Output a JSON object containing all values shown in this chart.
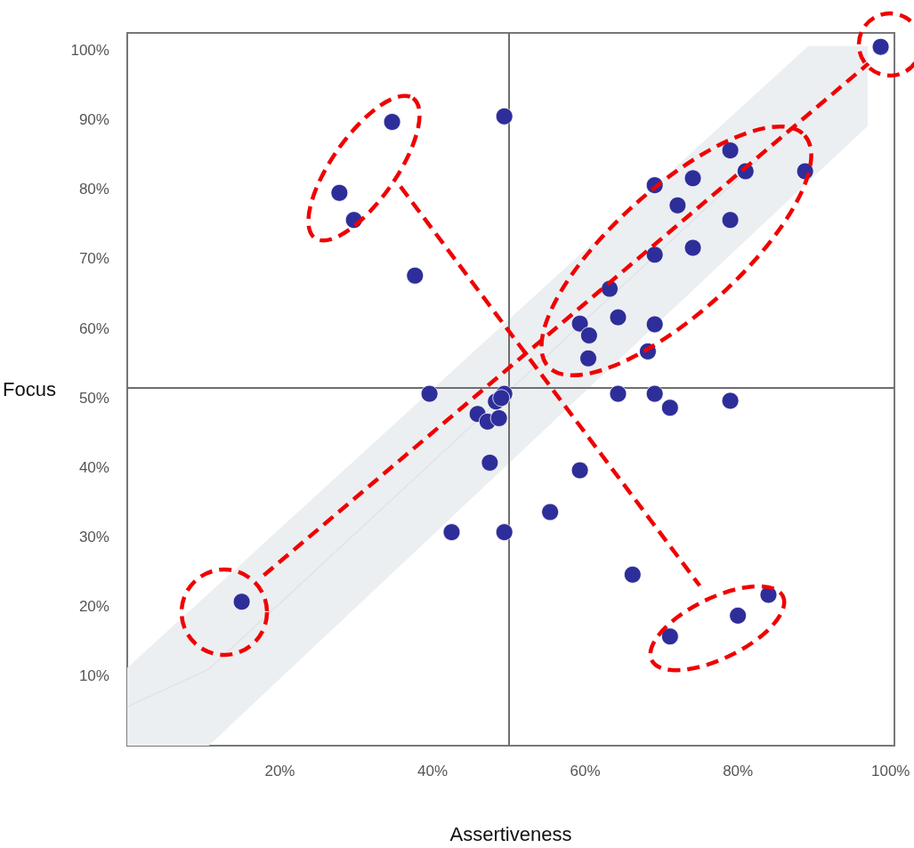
{
  "chart_data": {
    "type": "scatter",
    "xlabel": "Assertiveness",
    "ylabel": "Focus",
    "series": [
      {
        "type": "line",
        "color": "#dfe4e8",
        "marker": "none",
        "x": [
          0,
          10.7,
          89.2,
          97.0
        ],
        "values": [
          5.6,
          11.0,
          90.9,
          null
        ],
        "lower": [
          0,
          0,
          81.1,
          89.1
        ],
        "upper": [
          11.2,
          21.9,
          100.6,
          100.6
        ]
      },
      {
        "color": "#2e2e9a",
        "marker": "circle",
        "x": [
          34.7,
          27.8,
          29.7,
          49.4,
          37.7,
          98.7,
          79.0,
          81.0,
          88.8,
          74.1,
          69.1,
          72.1,
          79.0,
          74.1,
          69.1,
          63.2,
          59.3,
          64.3,
          69.1,
          60.5,
          60.4,
          68.2,
          39.6,
          49.4,
          45.9,
          47.2,
          48.7,
          48.3,
          49.0,
          47.5,
          42.5,
          49.4,
          15.0,
          64.3,
          69.1,
          71.1,
          79.0,
          59.3,
          55.4,
          66.2,
          71.1,
          80.0,
          84.0
        ],
        "values": [
          89.7,
          79.5,
          75.6,
          90.5,
          67.6,
          100.5,
          85.6,
          82.6,
          82.6,
          81.6,
          80.6,
          77.7,
          75.6,
          71.6,
          70.6,
          65.7,
          60.7,
          61.6,
          60.6,
          59.0,
          55.7,
          56.7,
          50.6,
          50.6,
          47.7,
          46.6,
          47.1,
          49.5,
          50.0,
          40.7,
          30.7,
          30.7,
          20.7,
          50.6,
          50.6,
          48.6,
          49.6,
          39.6,
          33.6,
          24.6,
          15.7,
          18.7,
          21.7
        ]
      },
      {
        "type": "line",
        "color": "#f00000",
        "line_style": "dashed",
        "marker": "none",
        "x": [
          17.9,
          97.1
        ],
        "values": [
          24.5,
          98.1
        ]
      },
      {
        "type": "line",
        "color": "#f00000",
        "line_style": "dashed",
        "marker": "none",
        "x": [
          35.8,
          75.0
        ],
        "values": [
          80.4,
          23.0
        ]
      }
    ],
    "xlim": [
      0,
      100.5
    ],
    "ylim": [
      0,
      102.5
    ],
    "xticks": [
      {
        "value": 20,
        "label": "20%"
      },
      {
        "value": 40,
        "label": "40%"
      },
      {
        "value": 60,
        "label": "60%"
      },
      {
        "value": 80,
        "label": "80%"
      },
      {
        "value": 100,
        "label": "100%"
      }
    ],
    "yticks": [
      {
        "value": 10,
        "label": "10%"
      },
      {
        "value": 20,
        "label": "20%"
      },
      {
        "value": 30,
        "label": "30%"
      },
      {
        "value": 40,
        "label": "40%"
      },
      {
        "value": 50,
        "label": "50%"
      },
      {
        "value": 60,
        "label": "60%"
      },
      {
        "value": 70,
        "label": "70%"
      },
      {
        "value": 80,
        "label": "80%"
      },
      {
        "value": 90,
        "label": "90%"
      },
      {
        "value": 100,
        "label": "100%"
      }
    ],
    "grid": false,
    "ref_lines": [
      {
        "axis": "x",
        "value": 50,
        "color": "#6e6e6e"
      },
      {
        "axis": "y",
        "value": 51.5,
        "color": "#6e6e6e"
      }
    ]
  }
}
